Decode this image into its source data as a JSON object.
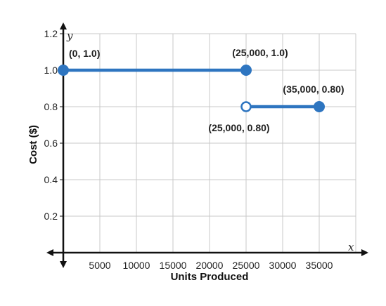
{
  "chart_data": {
    "type": "line",
    "xlabel": "Units Produced",
    "ylabel": "Cost ($)",
    "x_var": "x",
    "y_var": "y",
    "xlim": [
      0,
      40000
    ],
    "ylim": [
      0,
      1.3
    ],
    "x_ticks": [
      5000,
      10000,
      15000,
      20000,
      25000,
      30000,
      35000
    ],
    "x_tick_labels": [
      "5000",
      "10000",
      "15000",
      "20000",
      "25000",
      "30000",
      "35000"
    ],
    "y_ticks": [
      0.2,
      0.4,
      0.6,
      0.8,
      1.0,
      1.2
    ],
    "y_tick_labels": [
      "0.2",
      "0.4",
      "0.6",
      "0.8",
      "1.0",
      "1.2"
    ],
    "grid": true,
    "series": [
      {
        "points": [
          {
            "x": 0,
            "y": 1.0,
            "closed": true,
            "label": "(0, 1.0)"
          },
          {
            "x": 25000,
            "y": 1.0,
            "closed": true,
            "label": "(25,000, 1.0)"
          }
        ]
      },
      {
        "points": [
          {
            "x": 25000,
            "y": 0.8,
            "closed": false,
            "label": "(25,000, 0.80)"
          },
          {
            "x": 35000,
            "y": 0.8,
            "closed": true,
            "label": "(35,000, 0.80)"
          }
        ]
      }
    ],
    "line_color": "#2e75c0"
  }
}
